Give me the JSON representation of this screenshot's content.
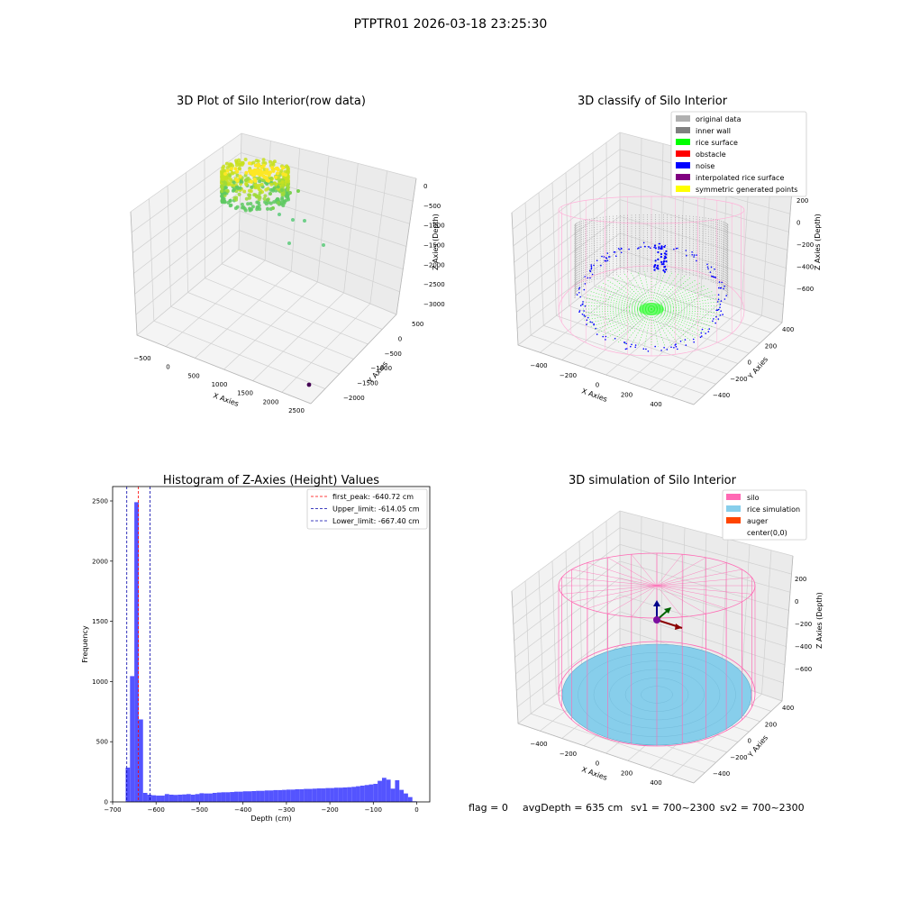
{
  "figure_title": "PTPTR01 2026-03-18 23:25:30",
  "status_line": {
    "flag": "flag = 0",
    "avg": "avgDepth = 635 cm",
    "sv1": "sv1 = 700~2300",
    "sv2": "sv2 = 700~2300"
  },
  "colors": {
    "hist_bar": "#4b4bff",
    "peak_line": "#ff0000",
    "limit_line": "#0000aa",
    "silo": "#ff69b4",
    "rice": "#87ceeb",
    "auger": "#ff4500",
    "rice_surface": "#00ff00",
    "noise": "#0000ff",
    "inner_wall": "#808080"
  },
  "chart_data": [
    {
      "type": "scatter",
      "projection": "3d",
      "title": "3D Plot of Silo Interior(row data)",
      "xlabel": "X Axies",
      "ylabel": "Y Axies",
      "zlabel": "Z Axies (Depth)",
      "x_ticks": [
        "−500",
        "0",
        "500",
        "1000",
        "1500",
        "2000",
        "2500"
      ],
      "y_ticks": [
        "500",
        "0",
        "−500",
        "−1000",
        "−1500",
        "−2000"
      ],
      "z_ticks": [
        "0",
        "−500",
        "−1000",
        "−1500",
        "−2000",
        "−2500",
        "−3000"
      ],
      "xlim": [
        -600,
        2600
      ],
      "ylim": [
        -2200,
        700
      ],
      "zlim": [
        -3000,
        0
      ],
      "colormap": "viridis",
      "outliers": [
        {
          "x": 2350,
          "y": -2100,
          "z": -3000
        },
        {
          "x": 900,
          "y": 300,
          "z": -1500
        },
        {
          "x": 1200,
          "y": 100,
          "z": -1550
        }
      ]
    },
    {
      "type": "scatter",
      "projection": "3d",
      "title": "3D classify of Silo Interior",
      "xlabel": "X Axies",
      "ylabel": "Y Axies",
      "zlabel": "Z Axies (Depth)",
      "x_ticks": [
        "−400",
        "−200",
        "0",
        "200",
        "400"
      ],
      "y_ticks": [
        "400",
        "200",
        "0",
        "−200",
        "−400"
      ],
      "z_ticks": [
        "200",
        "0",
        "−200",
        "−400",
        "−600"
      ],
      "legend": [
        {
          "label": "original data",
          "color": "#b0b0b0"
        },
        {
          "label": "inner wall",
          "color": "#808080"
        },
        {
          "label": "rice surface",
          "color": "#00ff00"
        },
        {
          "label": "obstacle",
          "color": "#ff0000"
        },
        {
          "label": "noise",
          "color": "#0000ff"
        },
        {
          "label": "interpolated rice surface",
          "color": "#800080"
        },
        {
          "label": "symmetric generated points",
          "color": "#ffff00"
        }
      ],
      "legend_loc": "upper right"
    },
    {
      "type": "bar",
      "title": "Histogram of Z-Axies (Height) Values",
      "xlabel": "Depth (cm)",
      "ylabel": "Frequency",
      "xlim": [
        -700,
        30
      ],
      "ylim": [
        0,
        2620
      ],
      "x_ticks": [
        -700,
        -600,
        -500,
        -400,
        -300,
        -200,
        -100,
        0
      ],
      "x_tick_labels": [
        "−700",
        "−600",
        "−500",
        "−400",
        "−300",
        "−200",
        "−100",
        "0"
      ],
      "y_ticks": [
        0,
        500,
        1000,
        1500,
        2000,
        2500
      ],
      "bin_edges": [
        -670,
        -660,
        -650,
        -640,
        -630,
        -620,
        -610,
        -600,
        -590,
        -580,
        -570,
        -560,
        -550,
        -540,
        -530,
        -520,
        -510,
        -500,
        -490,
        -480,
        -470,
        -460,
        -450,
        -440,
        -430,
        -420,
        -410,
        -400,
        -390,
        -380,
        -370,
        -360,
        -350,
        -340,
        -330,
        -320,
        -310,
        -300,
        -290,
        -280,
        -270,
        -260,
        -250,
        -240,
        -230,
        -220,
        -210,
        -200,
        -190,
        -180,
        -170,
        -160,
        -150,
        -140,
        -130,
        -120,
        -110,
        -100,
        -90,
        -80,
        -70,
        -60,
        -50,
        -40,
        -30,
        -20,
        -10,
        0
      ],
      "counts": [
        285,
        1045,
        2490,
        685,
        75,
        60,
        55,
        52,
        52,
        65,
        60,
        58,
        60,
        62,
        65,
        60,
        65,
        72,
        70,
        70,
        75,
        78,
        80,
        80,
        82,
        85,
        85,
        88,
        88,
        90,
        92,
        92,
        95,
        95,
        98,
        98,
        100,
        102,
        102,
        105,
        105,
        108,
        108,
        110,
        112,
        112,
        115,
        115,
        118,
        118,
        120,
        122,
        125,
        130,
        135,
        140,
        145,
        150,
        175,
        200,
        185,
        110,
        180,
        100,
        70,
        40,
        5
      ],
      "series": [
        {
          "name": "first_peak: -640.72 cm",
          "x": -640.72,
          "style": "red dashed"
        },
        {
          "name": "Upper_limit: -614.05 cm",
          "x": -614.05,
          "style": "blue dashed"
        },
        {
          "name": "Lower_limit: -667.40 cm",
          "x": -667.4,
          "style": "blue dashed"
        }
      ],
      "legend_loc": "upper right"
    },
    {
      "type": "scatter",
      "projection": "3d",
      "title": "3D simulation of Silo Interior",
      "xlabel": "X Axies",
      "ylabel": "Y Axies",
      "zlabel": "Z Axies (Depth)",
      "x_ticks": [
        "−400",
        "−200",
        "0",
        "200",
        "400"
      ],
      "y_ticks": [
        "400",
        "200",
        "0",
        "−200",
        "−400"
      ],
      "z_ticks": [
        "200",
        "0",
        "−200",
        "−400",
        "−600"
      ],
      "legend": [
        {
          "label": "silo",
          "color": "#ff69b4"
        },
        {
          "label": "rice simulation",
          "color": "#87ceeb"
        },
        {
          "label": "auger",
          "color": "#ff4500"
        },
        {
          "label": "center(0,0)",
          "color": ""
        }
      ],
      "legend_loc": "upper right"
    }
  ]
}
